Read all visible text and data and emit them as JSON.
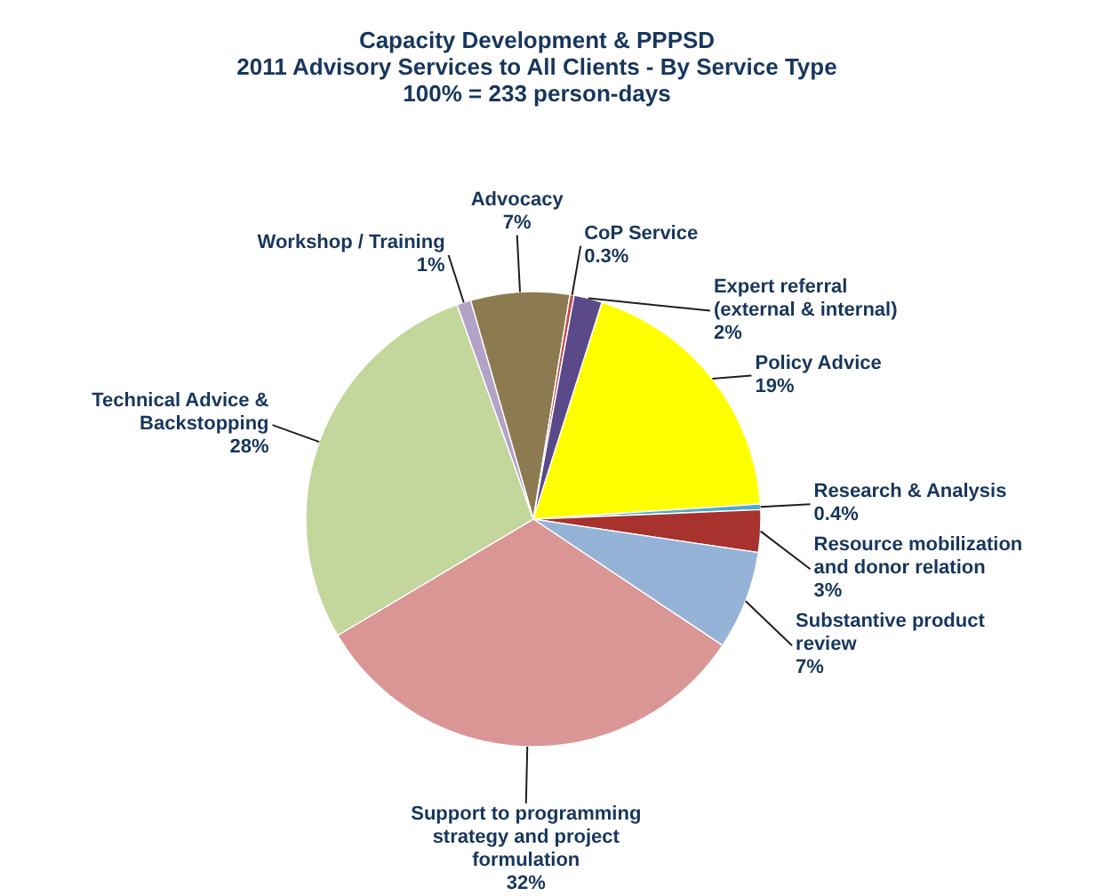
{
  "chart_data": {
    "type": "pie",
    "title": "Capacity Development & PPPSD",
    "subtitle": "2011 Advisory Services to All Clients - By Service Type",
    "annotations": [
      "100% = 233 person-days"
    ],
    "categories": [
      "Advocacy",
      "CoP Service",
      "Expert referral (external & internal)",
      "Policy Advice",
      "Research & Analysis",
      "Resource mobilization and donor relation",
      "Substantive product review",
      "Support to programming strategy and project formulation",
      "Technical Advice & Backstopping",
      "Workshop / Training"
    ],
    "values": [
      7,
      0.3,
      2,
      19,
      0.4,
      3,
      7,
      32,
      28,
      1
    ],
    "value_labels": [
      "7%",
      "0.3%",
      "2%",
      "19%",
      "0.4%",
      "3%",
      "7%",
      "32%",
      "28%",
      "1%"
    ],
    "colors": [
      "#8c7b50",
      "#c0504d",
      "#5b4a8a",
      "#ffff00",
      "#4bacc6",
      "#a8322e",
      "#95b3d7",
      "#d99694",
      "#c3d69b",
      "#b3a2c7"
    ]
  }
}
